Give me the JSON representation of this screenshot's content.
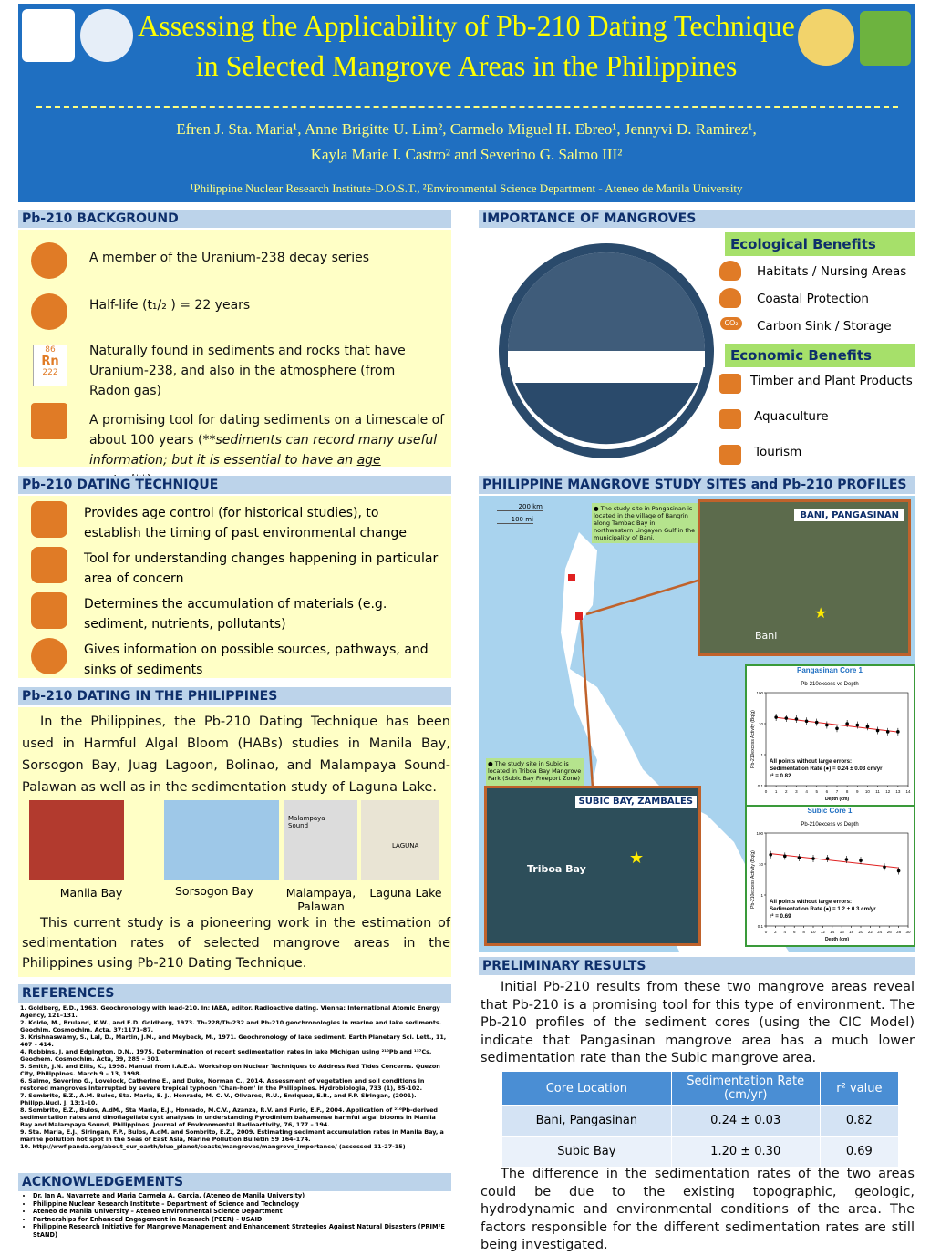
{
  "header": {
    "title_line1": "Assessing the Applicability of Pb-210 Dating Technique",
    "title_line2": "in Selected Mangrove Areas in the Philippines",
    "authors_line1": "Efren J. Sta. Maria¹, Anne Brigitte U. Lim², Carmelo Miguel H. Ebreo¹, Jennyvi D. Ramirez¹,",
    "authors_line2": "Kayla Marie I. Castro² and Severino G. Salmo III²",
    "affiliation": "¹Philippine Nuclear Research Institute-D.O.S.T., ²Environmental Science Department - Ateneo de Manila University"
  },
  "background": {
    "title": "Pb-210  BACKGROUND",
    "items": [
      "A member of the Uranium-238 decay series",
      "Half-life (t₁/₂ ) = 22 years",
      "Naturally found in sediments and rocks that have Uranium-238, and also in the atmosphere (from Radon gas)"
    ],
    "item4": {
      "text": "A promising tool for dating sediments on a timescale of about 100 years (**",
      "italic": "sediments can record many useful information; but it is essential  to have an ",
      "underline": "age control",
      "end": "**)"
    },
    "radon": {
      "number": "86",
      "symbol": "Rn",
      "mass": "222"
    }
  },
  "importance": {
    "title": "IMPORTANCE OF MANGROVES",
    "ecological_title": "Ecological Benefits",
    "ecological": [
      "Habitats / Nursing Areas",
      "Coastal Protection",
      "Carbon Sink / Storage"
    ],
    "co2": "CO₂",
    "economic_title": "Economic Benefits",
    "economic": [
      "Timber and Plant Products",
      "Aquaculture",
      "Tourism"
    ]
  },
  "technique": {
    "title": "Pb-210 DATING TECHNIQUE",
    "items": [
      "Provides age control (for historical studies), to establish the timing of past environmental change",
      "Tool for understanding changes happening in particular area of concern",
      "Determines the accumulation of materials (e.g. sediment, nutrients, pollutants)",
      "Gives information on possible sources,  pathways, and sinks of sediments"
    ]
  },
  "philippines": {
    "title": "Pb-210 DATING IN THE PHILIPPINES",
    "paragraph": "In the Philippines, the Pb-210 Dating Technique has been used in Harmful Algal Bloom (HABs) studies in Manila Bay, Sorsogon  Bay, Juag Lagoon, Bolinao, and Malampaya Sound-Palawan as  well as in the sedimentation study of  Laguna Lake.",
    "captions": [
      "Manila Bay",
      "Sorsogon  Bay",
      "Malampaya, Palawan",
      "Laguna Lake"
    ],
    "map_labels": [
      "Malampaya Sound",
      "LAGUNA"
    ],
    "paragraph2": "This current study is a pioneering work in the estimation of sedimentation rates of selected mangrove areas in the Philippines using Pb-210 Dating Technique."
  },
  "references": {
    "title": "REFERENCES",
    "items": [
      "1. Goldberg, E.D., 1963. Geochronology with lead-210. In: IAEA, editor. Radioactive dating. Vienna: International Atomic Energy Agency, 121–131.",
      "2. Koide, M., Bruland, K.W., and E.D. Goldberg, 1973. Th-228/Th-232 and Pb-210 geochronologies in marine and lake sediments. Geochim. Cosmochim. Acta. 37:1171–87.",
      "3. Krishnaswamy, S., Lal, D., Martin, J.M., and Meybeck, M., 1971. Geochronology of lake sediment. Earth Planetary Sci. Lett., 11, 407 – 414.",
      "4. Robbins, J. and Edgington, D.N., 1975. Determination of recent sedimentation rates in lake Michigan using ²¹⁰Pb and ¹³⁷Cs. Geochem. Cosmochim. Acta, 39, 285 – 301.",
      "5. Smith, J.N. and Ellis, K., 1998. Manual from I.A.E.A. Workshop on Nuclear Techniques to Address Red Tides Concerns. Quezon City, Philippines. March 9 – 13, 1998.",
      "6. Salmo, Severino G., Lovelock, Catherine E., and Duke, Norman C., 2014. Assessment of vegetation and soil conditions in restored mangroves interrupted by severe tropical typhoon 'Chan-hom' in the Philippines. Hydrobiologia, 733 (1), 85-102.",
      "7. Sombrito, E.Z., A.M. Bulos, Sta. Maria, E. J., Honrado, M. C. V., Olivares, R.U., Enriquez, E.B., and F.P. Siringan, (2001). Philipp.Nucl. J. 13:1-10.",
      "8. Sombrito, E.Z., Bulos, A.dM., Sta Maria, E.J., Honrado, M.C.V., Azanza, R.V. and Furio, E.F., 2004. Application of ²¹⁰Pb-derived sedimentation rates and dinoflagellate cyst analyses in understanding Pyrodinium bahamense harmful algal blooms in Manila Bay and Malampaya Sound, Philippines. Journal of Environmental Radioactivity, 76, 177 – 194.",
      "9. Sta. Maria, E.J., Siringan, F.P., Bulos, A.dM. and Sombrito, E.Z., 2009. Estimating sediment accumulation rates in Manila Bay, a marine pollution hot spot in the Seas of East Asia, Marine Pollution Bulletin 59 164–174.",
      "10. http://wwf.panda.org/about_our_earth/blue_planet/coasts/mangroves/mangrove_importance/ (accessed 11-27-15)"
    ]
  },
  "acknowledgements": {
    "title": "ACKNOWLEDGEMENTS",
    "items": [
      "Dr. Ian A. Navarrete and Maria Carmela A. Garcia, (Ateneo de Manila University)",
      "Philippine Nuclear Research Institute – Department of Science and Technology",
      "Ateneo de Manila University – Ateneo Environmental Science Department",
      "Partnerships for Enhanced Engagement in Research (PEER) - USAID",
      "Philippine Research Initiative for Mangrove Management and Enhancement Strategies Against Natural Disasters (PRIM²E StAND)"
    ]
  },
  "study_sites": {
    "title": "PHILIPPINE MANGROVE STUDY SITES and Pb-210 PROFILES",
    "scale": [
      "200 km",
      "100 mi"
    ],
    "note1": "● The study site in Pangasinan is located in the village of Bangrin along Tambac Bay in northwestern Lingayen Gulf in the municipality of Bani.",
    "site1": "BANI, PANGASINAN",
    "site1_place": "Bani",
    "note2": "● The study site in Subic is located in Triboa Bay Mangrove Park (Subic Bay Freeport Zone) .",
    "site2": "SUBIC BAY, ZAMBALES",
    "site2_place": "Triboa Bay"
  },
  "chart_data": [
    {
      "type": "scatter",
      "title": "Pangasinan Core 1",
      "subtitle": "Pb-210excess vs Depth",
      "x_label": "Depth (cm)",
      "y_label": "Pb-210excess Activity (Bq/g)",
      "annotations": [
        "All points without large errors:",
        "Sedimentation Rate (●) = 0.24 ± 0.03 cm/yr",
        "r² = 0.82"
      ],
      "color": "#000000",
      "fit_color": "#e02020",
      "log_y": true,
      "x": [
        1,
        2,
        3,
        4,
        5,
        6,
        7,
        8,
        9,
        10,
        11,
        12,
        13
      ],
      "values": [
        16,
        15,
        14,
        12,
        11,
        9,
        7,
        10,
        9,
        8,
        6,
        5.5,
        5.5
      ],
      "xlim": [
        0,
        14
      ],
      "xticks": [
        0,
        1,
        2,
        3,
        4,
        5,
        6,
        7,
        8,
        9,
        10,
        11,
        12,
        13,
        14
      ],
      "ylim": [
        0.1,
        100
      ],
      "yticks": [
        0.1,
        1,
        10,
        100
      ]
    },
    {
      "type": "scatter",
      "title": "Subic Core 1",
      "subtitle": "Pb-210excess vs Depth",
      "x_label": "Depth (cm)",
      "y_label": "Pb-210excess Activity (Bq/g)",
      "annotations": [
        "All points without large errors:",
        "Sedimentation Rate (●) = 1.2 ± 0.3 cm/yr",
        "r² = 0.69"
      ],
      "color": "#000000",
      "fit_color": "#e02020",
      "log_y": true,
      "x": [
        1,
        4,
        7,
        10,
        13,
        17,
        20,
        25,
        28
      ],
      "values": [
        20,
        18,
        16,
        15,
        15,
        14,
        13,
        8,
        6
      ],
      "xlim": [
        0,
        30
      ],
      "xticks": [
        0,
        2,
        4,
        6,
        8,
        10,
        12,
        14,
        16,
        18,
        20,
        22,
        24,
        26,
        28,
        30
      ],
      "ylim": [
        0.1,
        100
      ],
      "yticks": [
        0.1,
        1,
        10,
        100
      ]
    }
  ],
  "results": {
    "title": "PRELIMINARY RESULTS",
    "paragraph": "Initial Pb-210 results from these two mangrove areas reveal that Pb-210 is a promising tool for this type of environment. The Pb-210 profiles of the sediment cores (using the CIC Model) indicate that Pangasinan mangrove area has a much lower sedimentation rate than the Subic mangrove area.",
    "table": {
      "headers": [
        "Core Location",
        "Sedimentation Rate (cm/yr)",
        "r² value"
      ],
      "rows": [
        [
          "Bani, Pangasinan",
          "0.24 ± 0.03",
          "0.82"
        ],
        [
          "Subic Bay",
          "1.20 ± 0.30",
          "0.69"
        ]
      ]
    },
    "paragraph2": "The difference in the sedimentation rates of the two areas could be due to the existing topographic, geologic, hydrodynamic and environmental conditions of the area. The factors responsible for the different sedimentation rates are still being investigated."
  }
}
